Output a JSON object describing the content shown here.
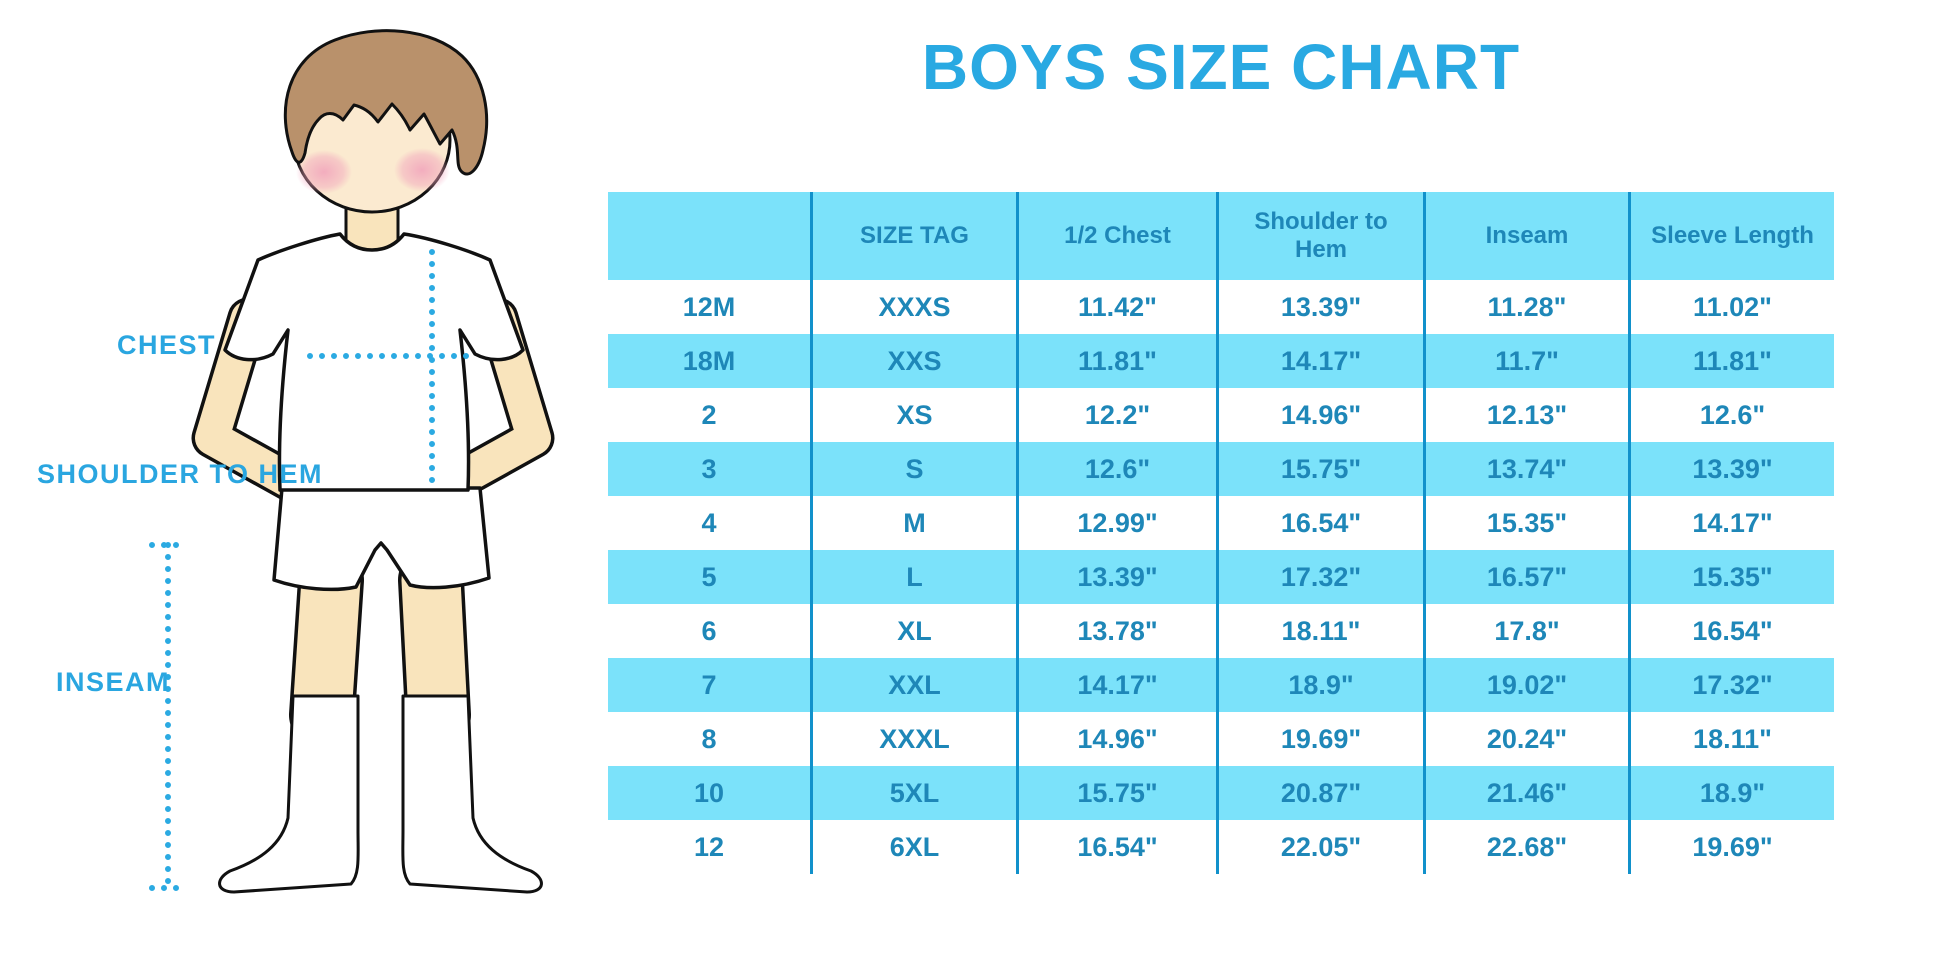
{
  "title": "BOYS SIZE CHART",
  "colors": {
    "accent_blue": "#29A9E2",
    "table_fill_cyan": "#7BE2FA",
    "table_line_blue": "#1191CB",
    "table_text_blue": "#1E87B8",
    "dotted_line_blue": "#2BAAE2",
    "skin": "#F9E4BC",
    "hair_brown": "#B9916B"
  },
  "figure": {
    "labels": {
      "chest": "CHEST",
      "shoulder_to_hem": "SHOULDER TO HEM",
      "inseam": "INSEAM"
    }
  },
  "chart_data": {
    "type": "table",
    "title": "BOYS SIZE CHART",
    "columns": [
      "",
      "SIZE TAG",
      "1/2 Chest",
      "Shoulder to Hem",
      "Inseam",
      "Sleeve Length"
    ],
    "rows": [
      [
        "12M",
        "XXXS",
        "11.42\"",
        "13.39\"",
        "11.28\"",
        "11.02\""
      ],
      [
        "18M",
        "XXS",
        "11.81\"",
        "14.17\"",
        "11.7\"",
        "11.81\""
      ],
      [
        "2",
        "XS",
        "12.2\"",
        "14.96\"",
        "12.13\"",
        "12.6\""
      ],
      [
        "3",
        "S",
        "12.6\"",
        "15.75\"",
        "13.74\"",
        "13.39\""
      ],
      [
        "4",
        "M",
        "12.99\"",
        "16.54\"",
        "15.35\"",
        "14.17\""
      ],
      [
        "5",
        "L",
        "13.39\"",
        "17.32\"",
        "16.57\"",
        "15.35\""
      ],
      [
        "6",
        "XL",
        "13.78\"",
        "18.11\"",
        "17.8\"",
        "16.54\""
      ],
      [
        "7",
        "XXL",
        "14.17\"",
        "18.9\"",
        "19.02\"",
        "17.32\""
      ],
      [
        "8",
        "XXXL",
        "14.96\"",
        "19.69\"",
        "20.24\"",
        "18.11\""
      ],
      [
        "10",
        "5XL",
        "15.75\"",
        "20.87\"",
        "21.46\"",
        "18.9\""
      ],
      [
        "12",
        "6XL",
        "16.54\"",
        "22.05\"",
        "22.68\"",
        "19.69\""
      ]
    ]
  }
}
